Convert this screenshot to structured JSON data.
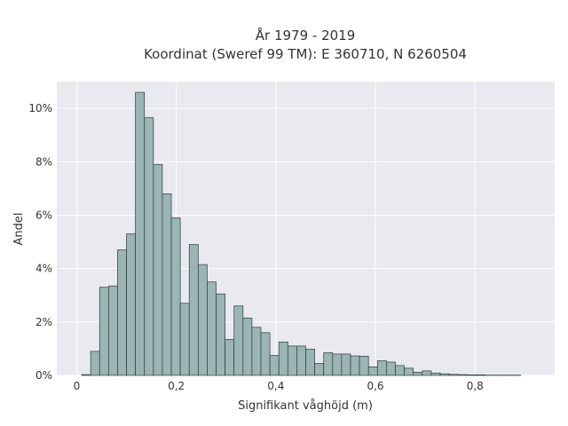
{
  "chart_data": {
    "type": "bar",
    "title": "År 1979 - 2019",
    "subtitle": "Koordinat (Sweref 99 TM): E 360710, N 6260504",
    "xlabel": "Signifikant våghöjd (m)",
    "ylabel": "Andel",
    "xlim": [
      -0.04,
      0.96
    ],
    "ylim": [
      0,
      0.11
    ],
    "grid": true,
    "x_ticks": [
      0,
      0.2,
      0.4,
      0.6,
      0.8
    ],
    "x_tick_labels": [
      "0",
      "0,2",
      "0,4",
      "0,6",
      "0,8"
    ],
    "y_ticks": [
      0,
      0.02,
      0.04,
      0.06,
      0.08,
      0.1
    ],
    "y_tick_labels": [
      "0%",
      "2%",
      "4%",
      "6%",
      "8%",
      "10%"
    ],
    "bin_start": 0.01,
    "bin_width": 0.018,
    "values": [
      0.0003,
      0.009,
      0.033,
      0.0335,
      0.047,
      0.053,
      0.106,
      0.0965,
      0.079,
      0.068,
      0.059,
      0.027,
      0.049,
      0.0415,
      0.035,
      0.0305,
      0.0135,
      0.026,
      0.0215,
      0.018,
      0.016,
      0.0075,
      0.0125,
      0.011,
      0.011,
      0.0098,
      0.0045,
      0.0085,
      0.008,
      0.008,
      0.0073,
      0.0072,
      0.0032,
      0.0055,
      0.005,
      0.0037,
      0.0027,
      0.0012,
      0.0017,
      0.0009,
      0.0006,
      0.0004,
      0.0003,
      0.0002,
      0.0002,
      0.0001,
      0.0001,
      0.0001,
      0.0001
    ],
    "colors": {
      "plot_background": "#e9e9f0",
      "bar_fill": "#9ab5b3",
      "bar_edge": "#2e3b3a",
      "grid": "#ffffff"
    }
  }
}
